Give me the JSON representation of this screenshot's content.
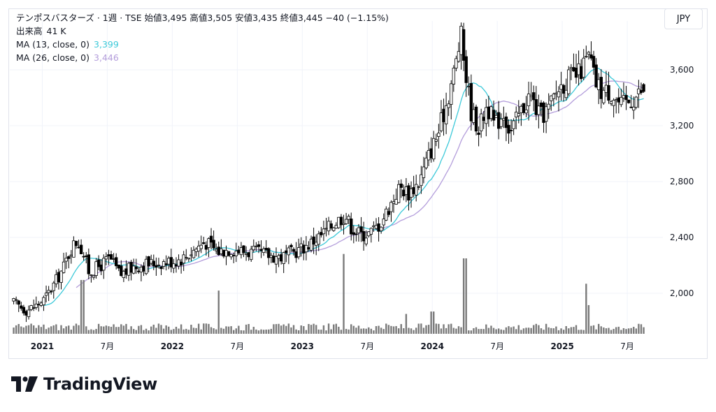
{
  "header": {
    "title_line": "テンポスバスターズ · 1週 · TSE  始値3,495  高値3,505  安値3,435  終値3,445  −40 (−1.15%)",
    "volume_label": "出来高",
    "volume_value": "41 K",
    "ma13_label": "MA (13, close, 0)",
    "ma13_value": "3,399",
    "ma26_label": "MA (26, close, 0)",
    "ma26_value": "3,446"
  },
  "currency_button": "JPY",
  "brand": {
    "name": "TradingView"
  },
  "colors": {
    "up": "#ffffff",
    "down": "#000000",
    "candle_outline": "#000000",
    "ma13": "#3cc9d9",
    "ma26": "#b39ddb",
    "volume": "#7a7a7a",
    "grid": "#f0f3fa"
  },
  "chart_data": {
    "type": "candlestick",
    "title": "テンポスバスターズ · 1週 · TSE",
    "price_ticks": [
      "3,600",
      "3,200",
      "2,800",
      "2,400",
      "2,000"
    ],
    "price_tick_values": [
      3600,
      3200,
      2800,
      2400,
      2000
    ],
    "x_tick_labels": [
      "2021",
      "7月",
      "2022",
      "7月",
      "2023",
      "7月",
      "2024",
      "7月",
      "2025",
      "7月"
    ],
    "x_tick_times": [
      2021.0,
      2021.5,
      2022.0,
      2022.5,
      2023.0,
      2023.5,
      2024.0,
      2024.5,
      2025.0,
      2025.5
    ],
    "ylim": [
      1700,
      3950
    ],
    "xlim": [
      2020.75,
      2025.72
    ],
    "anchors": [
      [
        2020.78,
        1930
      ],
      [
        2020.88,
        1880
      ],
      [
        2020.95,
        1910
      ],
      [
        2021.02,
        1960
      ],
      [
        2021.1,
        2080
      ],
      [
        2021.16,
        2180
      ],
      [
        2021.22,
        2320
      ],
      [
        2021.27,
        2380
      ],
      [
        2021.31,
        2300
      ],
      [
        2021.36,
        2150
      ],
      [
        2021.45,
        2200
      ],
      [
        2021.52,
        2250
      ],
      [
        2021.6,
        2130
      ],
      [
        2021.7,
        2190
      ],
      [
        2021.8,
        2210
      ],
      [
        2021.9,
        2220
      ],
      [
        2022.0,
        2230
      ],
      [
        2022.08,
        2250
      ],
      [
        2022.18,
        2320
      ],
      [
        2022.25,
        2370
      ],
      [
        2022.35,
        2300
      ],
      [
        2022.45,
        2320
      ],
      [
        2022.55,
        2300
      ],
      [
        2022.65,
        2290
      ],
      [
        2022.75,
        2270
      ],
      [
        2022.85,
        2260
      ],
      [
        2022.95,
        2300
      ],
      [
        2023.05,
        2350
      ],
      [
        2023.15,
        2420
      ],
      [
        2023.25,
        2510
      ],
      [
        2023.33,
        2560
      ],
      [
        2023.38,
        2470
      ],
      [
        2023.45,
        2420
      ],
      [
        2023.52,
        2430
      ],
      [
        2023.6,
        2500
      ],
      [
        2023.68,
        2640
      ],
      [
        2023.75,
        2760
      ],
      [
        2023.82,
        2720
      ],
      [
        2023.9,
        2800
      ],
      [
        2023.97,
        2980
      ],
      [
        2024.05,
        3160
      ],
      [
        2024.12,
        3400
      ],
      [
        2024.18,
        3640
      ],
      [
        2024.22,
        3850
      ],
      [
        2024.25,
        3620
      ],
      [
        2024.3,
        3300
      ],
      [
        2024.36,
        3180
      ],
      [
        2024.42,
        3350
      ],
      [
        2024.48,
        3200
      ],
      [
        2024.55,
        3300
      ],
      [
        2024.6,
        3150
      ],
      [
        2024.68,
        3300
      ],
      [
        2024.75,
        3420
      ],
      [
        2024.83,
        3260
      ],
      [
        2024.9,
        3330
      ],
      [
        2024.97,
        3470
      ],
      [
        2025.05,
        3540
      ],
      [
        2025.12,
        3560
      ],
      [
        2025.17,
        3640
      ],
      [
        2025.21,
        3700
      ],
      [
        2025.25,
        3520
      ],
      [
        2025.3,
        3450
      ],
      [
        2025.38,
        3440
      ],
      [
        2025.45,
        3340
      ],
      [
        2025.52,
        3380
      ],
      [
        2025.58,
        3420
      ],
      [
        2025.63,
        3470
      ]
    ],
    "volume_spikes": [
      [
        2021.31,
        2440000
      ],
      [
        2022.35,
        1960000
      ],
      [
        2023.32,
        3620000
      ],
      [
        2024.25,
        3420000
      ],
      [
        2025.19,
        2270000
      ],
      [
        2025.2,
        1300000
      ],
      [
        2024.0,
        1010000
      ],
      [
        2023.8,
        900000
      ]
    ],
    "volume_max": 3800000,
    "last": {
      "open": 3495,
      "high": 3505,
      "low": 3435,
      "close": 3445
    }
  }
}
